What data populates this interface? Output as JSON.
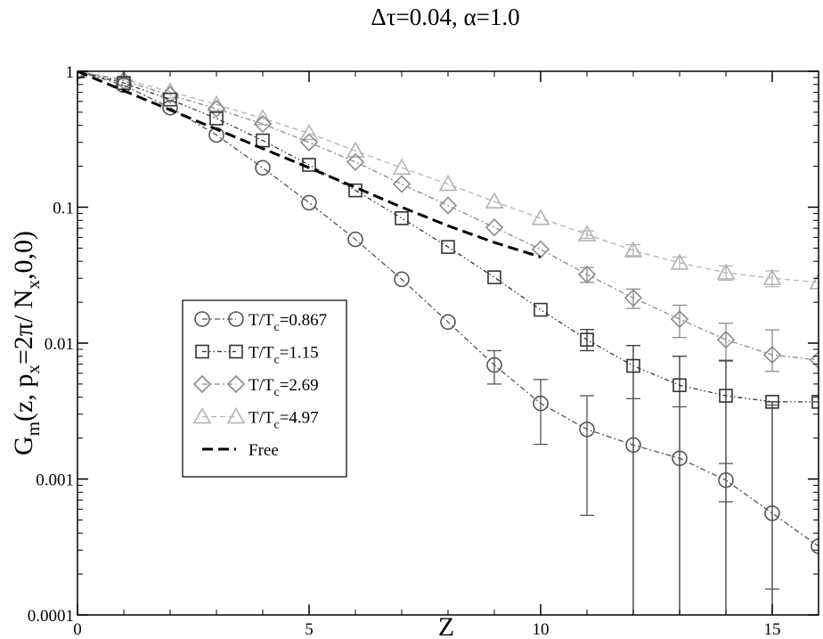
{
  "chart_data": {
    "type": "scatter",
    "title": "Δτ=0.04, α=1.0",
    "xlabel": "Z",
    "ylabel": "G_m(z, p_x=2π/ N_x,0,0)",
    "xlim": [
      0,
      16
    ],
    "ylim": [
      0.0001,
      1
    ],
    "yscale": "log",
    "x_ticks": [
      0,
      5,
      10,
      15
    ],
    "y_ticks": [
      0.0001,
      0.001,
      0.01,
      0.1,
      1
    ],
    "y_tick_labels": [
      "0.0001",
      "0.001",
      "0.01",
      "0.1",
      "1"
    ],
    "grid": false,
    "legend_position": "lower-left",
    "series": [
      {
        "name": "T/T_c=0.867",
        "legend_main": "T/T",
        "legend_sub": "c",
        "legend_tail": "=0.867",
        "marker": "circle",
        "line_style": "dash-dot",
        "color": "#555555",
        "x": [
          0,
          1,
          2,
          3,
          4,
          5,
          6,
          7,
          8,
          9,
          10,
          11,
          12,
          13,
          14,
          15,
          16
        ],
        "y": [
          1.0,
          0.79,
          0.54,
          0.34,
          0.195,
          0.108,
          0.058,
          0.0295,
          0.0143,
          0.0069,
          0.0036,
          0.00232,
          0.00178,
          0.00142,
          0.00098,
          0.00056,
          0.00032
        ],
        "err_low": [
          1.0,
          0.79,
          0.54,
          0.34,
          0.195,
          0.108,
          0.058,
          0.0295,
          0.0143,
          0.005,
          0.0018,
          0.00054,
          0.0001,
          0.0001,
          0.00068,
          0.000155,
          0.00032
        ],
        "err_high": [
          1.0,
          0.79,
          0.54,
          0.34,
          0.195,
          0.108,
          0.058,
          0.0295,
          0.0143,
          0.0088,
          0.0054,
          0.0041,
          0.0039,
          0.0034,
          0.0013,
          0.0035,
          0.00032
        ]
      },
      {
        "name": "T/T_c=1.15",
        "legend_main": "T/T",
        "legend_sub": "c",
        "legend_tail": "=1.15",
        "marker": "square",
        "line_style": "dash-dot-dot",
        "color": "#333333",
        "x": [
          0,
          1,
          2,
          3,
          4,
          5,
          6,
          7,
          8,
          9,
          10,
          11,
          12,
          13,
          14,
          15,
          16
        ],
        "y": [
          1.0,
          0.82,
          0.62,
          0.45,
          0.31,
          0.205,
          0.133,
          0.083,
          0.051,
          0.0305,
          0.0176,
          0.0106,
          0.0068,
          0.0049,
          0.0041,
          0.0037,
          0.0037
        ],
        "err_low": [
          1.0,
          0.82,
          0.62,
          0.45,
          0.31,
          0.205,
          0.133,
          0.083,
          0.051,
          0.0305,
          0.0176,
          0.0088,
          0.0001,
          0.0001,
          0.0001,
          0.0001,
          0.0037
        ],
        "err_high": [
          1.0,
          0.82,
          0.62,
          0.45,
          0.31,
          0.205,
          0.133,
          0.083,
          0.051,
          0.0305,
          0.0176,
          0.0126,
          0.0096,
          0.008,
          0.0074,
          0.0037,
          0.0037
        ]
      },
      {
        "name": "T/T_c=2.69",
        "legend_main": "T/T",
        "legend_sub": "c",
        "legend_tail": "=2.69",
        "marker": "diamond",
        "line_style": "dash-dot",
        "color": "#8c8c8c",
        "x": [
          0,
          1,
          2,
          3,
          4,
          5,
          6,
          7,
          8,
          9,
          10,
          11,
          12,
          13,
          14,
          15,
          16
        ],
        "y": [
          1.0,
          0.85,
          0.67,
          0.53,
          0.41,
          0.3,
          0.215,
          0.148,
          0.103,
          0.071,
          0.049,
          0.032,
          0.0215,
          0.015,
          0.0106,
          0.0082,
          0.0075
        ],
        "err_low": [
          1.0,
          0.85,
          0.67,
          0.53,
          0.41,
          0.3,
          0.215,
          0.148,
          0.103,
          0.071,
          0.049,
          0.028,
          0.018,
          0.011,
          0.0075,
          0.0062,
          0.0075
        ],
        "err_high": [
          1.0,
          0.85,
          0.67,
          0.53,
          0.41,
          0.3,
          0.215,
          0.148,
          0.103,
          0.071,
          0.049,
          0.036,
          0.025,
          0.019,
          0.014,
          0.0125,
          0.0075
        ]
      },
      {
        "name": "T/T_c=4.97",
        "legend_main": "T/T",
        "legend_sub": "c",
        "legend_tail": "=4.97",
        "marker": "triangle",
        "line_style": "dashed",
        "color": "#b4b4b4",
        "x": [
          0,
          1,
          2,
          3,
          4,
          5,
          6,
          7,
          8,
          9,
          10,
          11,
          12,
          13,
          14,
          15,
          16
        ],
        "y": [
          1.0,
          0.87,
          0.71,
          0.57,
          0.45,
          0.35,
          0.26,
          0.195,
          0.148,
          0.11,
          0.083,
          0.063,
          0.048,
          0.039,
          0.033,
          0.03,
          0.028
        ],
        "err_low": [
          1.0,
          0.87,
          0.71,
          0.57,
          0.45,
          0.35,
          0.26,
          0.195,
          0.148,
          0.11,
          0.083,
          0.059,
          0.044,
          0.035,
          0.029,
          0.026,
          0.028
        ],
        "err_high": [
          1.0,
          0.87,
          0.71,
          0.57,
          0.45,
          0.35,
          0.26,
          0.195,
          0.148,
          0.11,
          0.083,
          0.067,
          0.053,
          0.043,
          0.037,
          0.034,
          0.028
        ]
      },
      {
        "name": "Free",
        "marker": "none",
        "line_style": "long-dash",
        "color": "#000000",
        "x": [
          0,
          1,
          2,
          3,
          4,
          5,
          6,
          7,
          8,
          9,
          10
        ],
        "y": [
          1.0,
          0.72,
          0.52,
          0.375,
          0.27,
          0.195,
          0.14,
          0.1,
          0.073,
          0.055,
          0.043
        ]
      }
    ]
  }
}
